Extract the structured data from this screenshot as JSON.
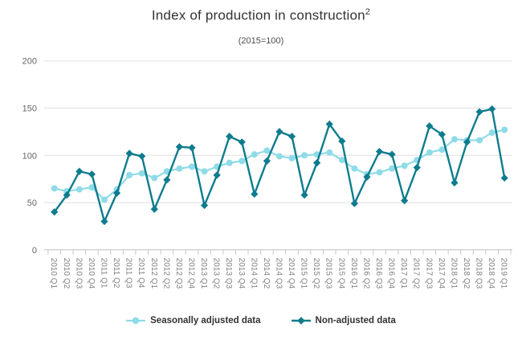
{
  "chart": {
    "title": "Index of production in construction",
    "title_footnote_marker": "2",
    "subtitle": "(2015=100)"
  },
  "legend": {
    "items": [
      {
        "label": "Seasonally adjusted data",
        "series": "seasonally-adjusted",
        "marker": "circle"
      },
      {
        "label": "Non-adjusted data",
        "series": "non-adjusted",
        "marker": "diamond"
      }
    ]
  },
  "colors": {
    "seasonally_adjusted": "#8fdbe8",
    "non_adjusted": "#0e7c8e",
    "gridline": "#e0e0e0",
    "axis": "#c8c8c8",
    "y_label": "#666666",
    "x_label": "#808080"
  },
  "chart_data": {
    "type": "line",
    "title": "Index of production in construction²",
    "subtitle": "(2015=100)",
    "xlabel": "",
    "ylabel": "",
    "ylim": [
      0,
      200
    ],
    "yticks": [
      0,
      50,
      100,
      150,
      200
    ],
    "grid": true,
    "legend_position": "bottom",
    "categories": [
      "2010 Q1",
      "2010 Q2",
      "2010 Q3",
      "2010 Q4",
      "2011 Q1",
      "2011 Q2",
      "2011 Q3",
      "2011 Q4",
      "2012 Q1",
      "2012 Q2",
      "2012 Q3",
      "2012 Q4",
      "2013 Q1",
      "2013 Q2",
      "2013 Q3",
      "2013 Q4",
      "2014 Q1",
      "2014 Q2",
      "2014 Q3",
      "2014 Q4",
      "2015 Q1",
      "2015 Q2",
      "2015 Q3",
      "2015 Q4",
      "2016 Q1",
      "2016 Q2",
      "2016 Q3",
      "2016 Q4",
      "2017 Q1",
      "2017 Q2",
      "2017 Q3",
      "2017 Q4",
      "2018 Q1",
      "2018 Q2",
      "2018 Q3",
      "2018 Q4",
      "2019 Q1"
    ],
    "series": [
      {
        "name": "Seasonally adjusted data",
        "marker": "circle",
        "color": "#8fdbe8",
        "values": [
          65,
          62,
          64,
          66,
          53,
          64,
          79,
          81,
          76,
          83,
          86,
          88,
          83,
          88,
          92,
          94,
          101,
          105,
          99,
          97,
          100,
          101,
          103,
          95,
          86,
          80,
          82,
          86,
          89,
          95,
          103,
          106,
          117,
          116,
          116,
          124,
          127
        ]
      },
      {
        "name": "Non-adjusted data",
        "marker": "diamond",
        "color": "#0e7c8e",
        "values": [
          40,
          58,
          83,
          80,
          30,
          60,
          102,
          99,
          43,
          74,
          109,
          108,
          47,
          79,
          120,
          114,
          59,
          94,
          125,
          120,
          58,
          92,
          133,
          115,
          49,
          77,
          104,
          101,
          52,
          87,
          131,
          122,
          71,
          114,
          146,
          149,
          76
        ]
      }
    ]
  }
}
